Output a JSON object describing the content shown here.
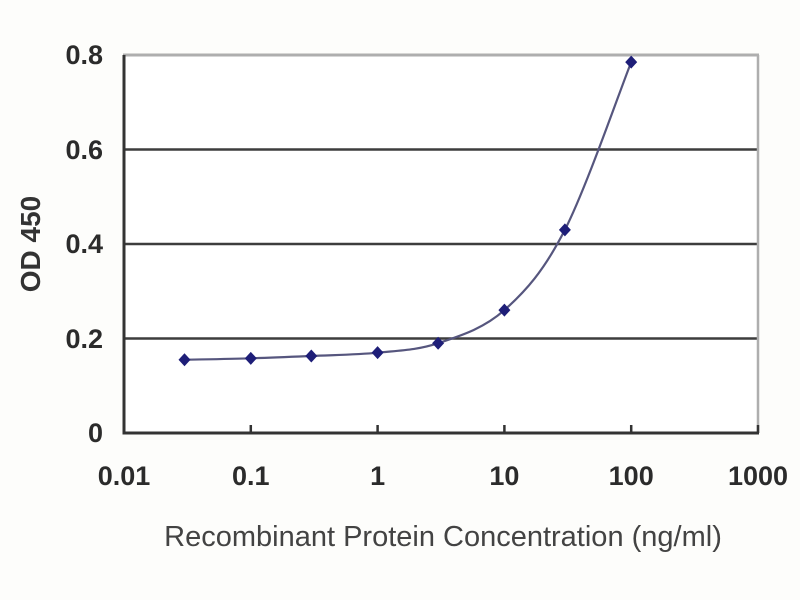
{
  "chart_data": {
    "type": "line",
    "title": "",
    "xlabel": "Recombinant Protein Concentration (ng/ml)",
    "ylabel": "OD 450",
    "x_scale": "log",
    "y_scale": "linear",
    "xlim": [
      0.01,
      1000
    ],
    "ylim": [
      0,
      0.8
    ],
    "x_ticks": [
      0.01,
      0.1,
      1,
      10,
      100,
      1000
    ],
    "x_tick_labels": [
      "0.01",
      "0.1",
      "1",
      "10",
      "100",
      "1000"
    ],
    "y_ticks": [
      0,
      0.2,
      0.4,
      0.6,
      0.8
    ],
    "y_tick_labels": [
      "0",
      "0.2",
      "0.4",
      "0.6",
      "0.8"
    ],
    "grid": "horizontal-only",
    "legend": "none",
    "series": [
      {
        "name": "OD 450",
        "marker": "diamond",
        "smooth": true,
        "x": [
          0.03,
          0.1,
          0.3,
          1,
          3,
          10,
          30,
          100
        ],
        "y": [
          0.155,
          0.158,
          0.163,
          0.17,
          0.19,
          0.26,
          0.43,
          0.785
        ]
      }
    ],
    "colors": {
      "line": "#56567e",
      "marker": "#1e1e78",
      "gridline": "#3d3d3d",
      "axis": "#333333",
      "frame_top_right": "#aeaeae",
      "tick_text": "#2b2b2b",
      "title_text": "#434343",
      "plot_background": "#ffffff",
      "page_background": "#fdfdfb"
    }
  }
}
